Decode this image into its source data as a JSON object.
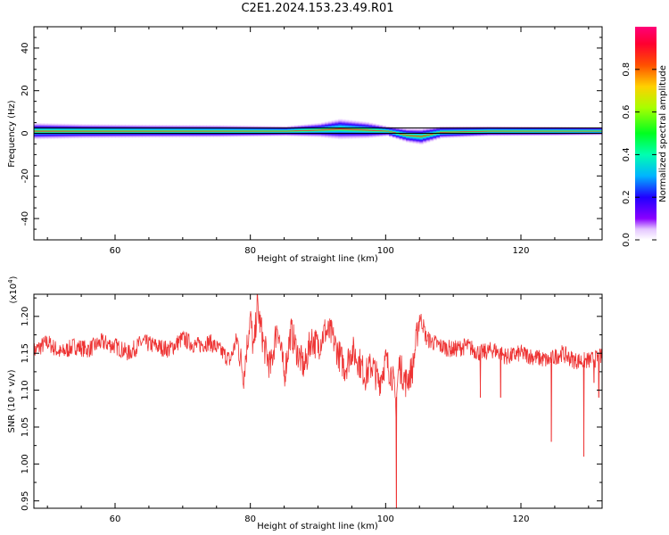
{
  "title": "C2E1.2024.153.23.49.R01",
  "colors": {
    "snr_line": "#ee3333",
    "centre_line": "#000000"
  },
  "chart_data": [
    {
      "type": "heatmap",
      "xlabel": "Height of straight line (km)",
      "ylabel": "Frequency (Hz)",
      "xlim": [
        48,
        132
      ],
      "ylim": [
        -50,
        50
      ],
      "xticks": [
        60,
        80,
        100,
        120
      ],
      "yticks": [
        -40,
        -20,
        0,
        20,
        40
      ],
      "colorbar": {
        "label": "Normalized spectral amplitude",
        "range": [
          0.0,
          1.0
        ],
        "ticks": [
          0.0,
          0.2,
          0.4,
          0.6,
          0.8
        ],
        "tick_labels": [
          "0.0",
          "0.2",
          "0.4",
          "0.6",
          "0.8"
        ]
      },
      "signal_band": [
        {
          "x": 48,
          "f": 1.0,
          "halfwidth": 4.0
        },
        {
          "x": 55,
          "f": 1.0,
          "halfwidth": 3.5
        },
        {
          "x": 65,
          "f": 1.0,
          "halfwidth": 3.2
        },
        {
          "x": 75,
          "f": 1.0,
          "halfwidth": 3.0
        },
        {
          "x": 85,
          "f": 1.0,
          "halfwidth": 2.5
        },
        {
          "x": 90,
          "f": 1.5,
          "halfwidth": 3.5
        },
        {
          "x": 93,
          "f": 2.0,
          "halfwidth": 5.0
        },
        {
          "x": 97,
          "f": 1.5,
          "halfwidth": 4.0
        },
        {
          "x": 100,
          "f": 1.0,
          "halfwidth": 2.5
        },
        {
          "x": 103,
          "f": -1.0,
          "halfwidth": 3.5
        },
        {
          "x": 105,
          "f": -1.5,
          "halfwidth": 4.0
        },
        {
          "x": 108,
          "f": 0.5,
          "halfwidth": 3.0
        },
        {
          "x": 115,
          "f": 1.0,
          "halfwidth": 2.5
        },
        {
          "x": 125,
          "f": 1.0,
          "halfwidth": 2.3
        },
        {
          "x": 132,
          "f": 1.0,
          "halfwidth": 2.0
        }
      ],
      "reference_lines": [
        0,
        2.5
      ]
    },
    {
      "type": "line",
      "xlabel": "Height of straight line (km)",
      "ylabel": "SNR (10 * v/v)",
      "yscale_label": "(x10",
      "yscale_exp": "4",
      "yscale_close": ")",
      "xlim": [
        48,
        132
      ],
      "ylim": [
        0.94,
        1.23
      ],
      "xticks": [
        60,
        80,
        100,
        120
      ],
      "yticks": [
        0.95,
        1.0,
        1.05,
        1.1,
        1.15,
        1.2
      ],
      "ytick_labels": [
        "0.95",
        "1.00",
        "1.05",
        "1.10",
        "1.15",
        "1.20"
      ],
      "series": [
        {
          "color": "#ee3333",
          "x": [
            48,
            50,
            52,
            54,
            56,
            58,
            60,
            62,
            64,
            66,
            68,
            70,
            72,
            74,
            76,
            77,
            78,
            79,
            80,
            80.5,
            81,
            82,
            83,
            84,
            85,
            86,
            87,
            88,
            89,
            90,
            91,
            92,
            93,
            94,
            95,
            96,
            97,
            98,
            99,
            100,
            101,
            101.5,
            102,
            103,
            104,
            105,
            105.5,
            106,
            107,
            108,
            110,
            112,
            114,
            116,
            118,
            120,
            122,
            124,
            126,
            128,
            130,
            132
          ],
          "values": [
            1.153,
            1.165,
            1.15,
            1.16,
            1.155,
            1.165,
            1.16,
            1.15,
            1.165,
            1.16,
            1.155,
            1.17,
            1.16,
            1.165,
            1.15,
            1.14,
            1.17,
            1.12,
            1.2,
            1.15,
            1.215,
            1.16,
            1.13,
            1.19,
            1.12,
            1.18,
            1.15,
            1.13,
            1.17,
            1.16,
            1.18,
            1.175,
            1.15,
            1.13,
            1.155,
            1.14,
            1.12,
            1.135,
            1.11,
            1.14,
            1.12,
            1.08,
            1.135,
            1.11,
            1.13,
            1.2,
            1.19,
            1.17,
            1.165,
            1.16,
            1.155,
            1.16,
            1.15,
            1.155,
            1.145,
            1.15,
            1.145,
            1.14,
            1.15,
            1.14,
            1.14,
            1.145
          ]
        }
      ],
      "spikes": [
        {
          "x": 101.6,
          "y": 0.94
        },
        {
          "x": 124.5,
          "y": 1.03
        },
        {
          "x": 129.3,
          "y": 1.01
        },
        {
          "x": 131.5,
          "y": 1.09
        },
        {
          "x": 114.0,
          "y": 1.09
        },
        {
          "x": 117.0,
          "y": 1.09
        },
        {
          "x": 130.8,
          "y": 1.11
        }
      ]
    }
  ]
}
